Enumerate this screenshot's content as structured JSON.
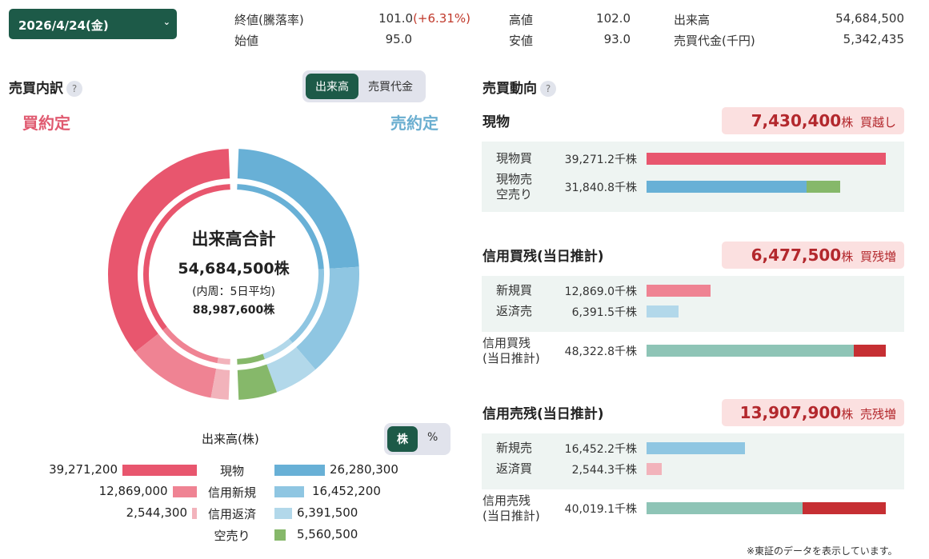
{
  "header": {
    "date": "2026/4/24(金)",
    "close_label": "終値(騰落率)",
    "close_value": "101.0",
    "close_change": "(+6.31%)",
    "open_label": "始値",
    "open_value": "95.0",
    "high_label": "高値",
    "high_value": "102.0",
    "low_label": "安値",
    "low_value": "93.0",
    "volume_label": "出来高",
    "volume_value": "54,684,500",
    "turnover_label": "売買代金(千円)",
    "turnover_value": "5,342,435"
  },
  "breakdown": {
    "title": "売買内訳",
    "help": "?",
    "tabs": [
      "出来高",
      "売買代金"
    ],
    "active_tab": 0,
    "buy_label": "買約定",
    "sell_label": "売約定",
    "center_title": "出来高合計",
    "center_value": "54,684,500株",
    "center_sub": "(内周：5日平均)",
    "center_avg": "88,987,600株",
    "legend_title": "出来高(株)",
    "unit_toggle": [
      "株",
      "%"
    ],
    "unit_active": 0,
    "buy_series": [
      {
        "name": "現物",
        "value": 39271200,
        "text": "39,271,200",
        "color": "#e8566e"
      },
      {
        "name": "信用新規",
        "value": 12869000,
        "text": "12,869,000",
        "color": "#ef8393"
      },
      {
        "name": "信用返済",
        "value": 2544300,
        "text": "2,544,300",
        "color": "#f2b3bb"
      }
    ],
    "sell_series": [
      {
        "name": "現物",
        "value": 26280300,
        "text": "26,280,300",
        "color": "#68b0d6"
      },
      {
        "name": "信用新規",
        "value": 16452200,
        "text": "16,452,200",
        "color": "#8fc6e2"
      },
      {
        "name": "信用返済",
        "value": 6391500,
        "text": "6,391,500",
        "color": "#b2d8ea"
      },
      {
        "name": "空売り",
        "value": 5560500,
        "text": "5,560,500",
        "color": "#86b86a"
      }
    ]
  },
  "trend": {
    "title": "売買動向",
    "help": "?",
    "spot": {
      "title": "現物",
      "badge_value": "7,430,400",
      "badge_unit": "株",
      "badge_note": "買越し",
      "rows": [
        {
          "label": "現物買",
          "value": "39,271.2千株",
          "segs": [
            {
              "v": 39271.2,
              "c": "#e8566e"
            }
          ]
        },
        {
          "label": "現物売\n空売り",
          "value": "31,840.8千株",
          "segs": [
            {
              "v": 26280.3,
              "c": "#68b0d6"
            },
            {
              "v": 5560.5,
              "c": "#86b86a"
            }
          ]
        }
      ],
      "max": 39271.2
    },
    "margin_buy": {
      "title": "信用買残(当日推計)",
      "badge_value": "6,477,500",
      "badge_unit": "株",
      "badge_note": "買残増",
      "rows": [
        {
          "label": "新規買",
          "value": "12,869.0千株",
          "segs": [
            {
              "v": 12869.0,
              "c": "#ef8393"
            }
          ]
        },
        {
          "label": "返済売",
          "value": "6,391.5千株",
          "segs": [
            {
              "v": 6391.5,
              "c": "#b2d8ea"
            }
          ]
        }
      ],
      "total": {
        "label": "信用買残\n(当日推計)",
        "value": "48,322.8千株",
        "segs": [
          {
            "v": 41845.3,
            "c": "#8ec4b6"
          },
          {
            "v": 6477.5,
            "c": "#c62f33"
          }
        ]
      },
      "max": 48322.8
    },
    "margin_sell": {
      "title": "信用売残(当日推計)",
      "badge_value": "13,907,900",
      "badge_unit": "株",
      "badge_note": "売残増",
      "rows": [
        {
          "label": "新規売",
          "value": "16,452.2千株",
          "segs": [
            {
              "v": 16452.2,
              "c": "#8fc6e2"
            }
          ]
        },
        {
          "label": "返済買",
          "value": "2,544.3千株",
          "segs": [
            {
              "v": 2544.3,
              "c": "#f2b3bb"
            }
          ]
        }
      ],
      "total": {
        "label": "信用売残\n(当日推計)",
        "value": "40,019.1千株",
        "segs": [
          {
            "v": 26111.2,
            "c": "#8ec4b6"
          },
          {
            "v": 13907.9,
            "c": "#c62f33"
          }
        ]
      },
      "max": 40019.1
    }
  },
  "footnote": "※東証のデータを表示しています。"
}
